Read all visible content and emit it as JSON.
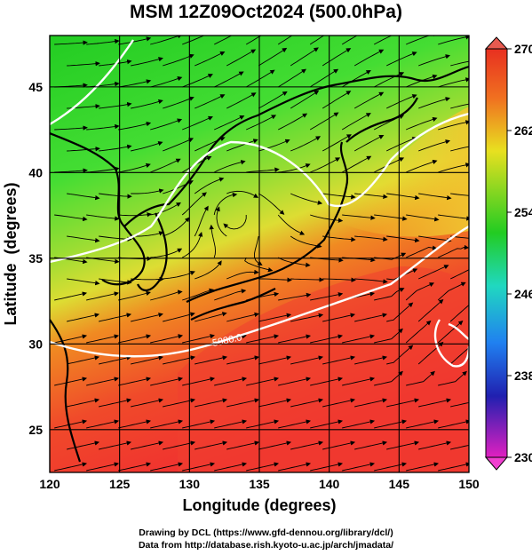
{
  "title": "MSM 12Z09Oct2024 (500.0hPa)",
  "map": {
    "x_axis": {
      "label": "Longitude (degrees)",
      "range": [
        120,
        150
      ],
      "ticks": [
        "120",
        "125",
        "130",
        "135",
        "140",
        "145",
        "150"
      ]
    },
    "y_axis": {
      "label": "Latitude  (degrees)",
      "range": [
        22.5,
        48
      ],
      "ticks": [
        "25",
        "30",
        "35",
        "40",
        "45"
      ]
    },
    "grid": true,
    "field": "temperature (K) color shading, wind streamlines, white geopotential height contours",
    "contour_label": "5880.0",
    "colors": {
      "green": "#33dd33",
      "yellow": "#e5e527",
      "orange": "#f07a22",
      "red": "#f0402a",
      "contour": "#ffffff",
      "streamline": "#000000"
    }
  },
  "colorbar": {
    "range": [
      230,
      270
    ],
    "labels": [
      "270",
      "262",
      "254",
      "246",
      "238",
      "230"
    ]
  },
  "credits": {
    "line1": "Drawing by DCL (https://www.gfd-dennou.org/library/dcl/)",
    "line2": "Data from http://database.rish.kyoto-u.ac.jp/arch/jmadata/"
  }
}
